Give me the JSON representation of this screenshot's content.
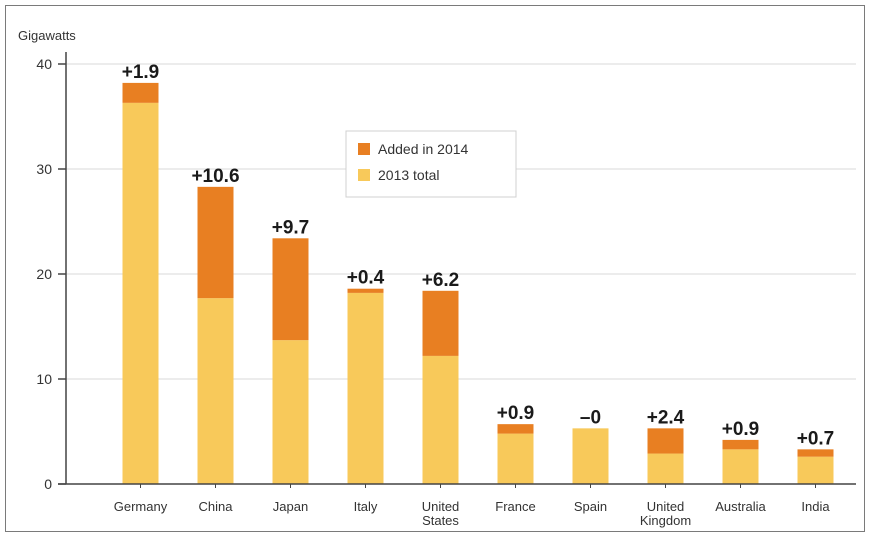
{
  "chart_data": {
    "type": "bar",
    "stacked": true,
    "ylabel": "Gigawatts",
    "ylim": [
      0,
      40
    ],
    "yticks": [
      0,
      10,
      20,
      30,
      40
    ],
    "grid": true,
    "legend_position": "upper-center",
    "categories": [
      [
        "Germany"
      ],
      [
        "China"
      ],
      [
        "Japan"
      ],
      [
        "Italy"
      ],
      [
        "United",
        "States"
      ],
      [
        "France"
      ],
      [
        "Spain"
      ],
      [
        "United",
        "Kingdom"
      ],
      [
        "Australia"
      ],
      [
        "India"
      ]
    ],
    "series": [
      {
        "name": "2013 total",
        "color": "#f8c95a",
        "values": [
          36.3,
          17.7,
          13.7,
          18.2,
          12.2,
          4.8,
          5.3,
          2.9,
          3.3,
          2.6
        ]
      },
      {
        "name": "Added in 2014",
        "color": "#e87f22",
        "values": [
          1.9,
          10.6,
          9.7,
          0.4,
          6.2,
          0.9,
          0,
          2.4,
          0.9,
          0.7
        ]
      }
    ],
    "data_labels": [
      "+1.9",
      "+10.6",
      "+9.7",
      "+0.4",
      "+6.2",
      "+0.9",
      "–0",
      "+2.4",
      "+0.9",
      "+0.7"
    ]
  }
}
